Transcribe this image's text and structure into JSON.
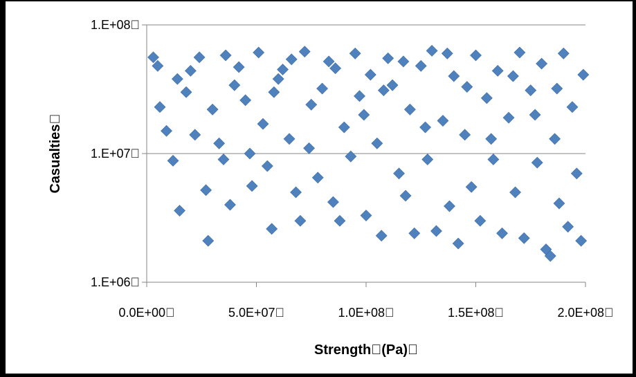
{
  "chart_data": {
    "type": "scatter",
    "title": "",
    "xlabel": "Strength\u0000(Pa)\u0000",
    "ylabel": "Casualties\u0000",
    "xlim": [
      0,
      200000000
    ],
    "ylim": [
      1000000,
      100000000
    ],
    "y_scale": "log",
    "grid": "horizontal major gridlines",
    "legend": "none",
    "marker": "diamond",
    "marker_color": "#4f81bd",
    "x_tick_labels": [
      "0.0E+00\u0000",
      "5.0E+07\u0000",
      "1.0E+08\u0000",
      "1.5E+08\u0000",
      "2.0E+08\u0000"
    ],
    "x_ticks": [
      0,
      50000000,
      100000000,
      150000000,
      200000000
    ],
    "y_tick_labels": [
      "1.E+06\u0000",
      "1.E+07\u0000",
      "1.E+08\u0000"
    ],
    "y_ticks": [
      1000000,
      10000000,
      100000000
    ],
    "series": [
      {
        "points": [
          [
            3000000,
            56000000
          ],
          [
            5000000,
            48000000
          ],
          [
            9000000,
            15000000
          ],
          [
            12000000,
            8800000
          ],
          [
            15000000,
            3600000
          ],
          [
            18000000,
            30000000
          ],
          [
            20000000,
            44000000
          ],
          [
            24000000,
            56000000
          ],
          [
            27000000,
            5200000
          ],
          [
            28000000,
            2100000
          ],
          [
            30000000,
            22000000
          ],
          [
            33000000,
            12000000
          ],
          [
            35000000,
            9000000
          ],
          [
            38000000,
            4000000
          ],
          [
            40000000,
            34000000
          ],
          [
            42000000,
            47000000
          ],
          [
            45000000,
            26000000
          ],
          [
            48000000,
            5600000
          ],
          [
            51000000,
            61000000
          ],
          [
            53000000,
            17000000
          ],
          [
            55000000,
            8000000
          ],
          [
            57000000,
            2600000
          ],
          [
            60000000,
            38000000
          ],
          [
            62000000,
            45000000
          ],
          [
            65000000,
            13000000
          ],
          [
            68000000,
            5000000
          ],
          [
            70000000,
            3000000
          ],
          [
            72000000,
            62000000
          ],
          [
            75000000,
            24000000
          ],
          [
            78000000,
            6500000
          ],
          [
            80000000,
            32000000
          ],
          [
            83000000,
            52000000
          ],
          [
            85000000,
            4200000
          ],
          [
            88000000,
            3000000
          ],
          [
            90000000,
            16000000
          ],
          [
            93000000,
            9500000
          ],
          [
            95000000,
            60000000
          ],
          [
            97000000,
            28000000
          ],
          [
            100000000,
            3300000
          ],
          [
            102000000,
            41000000
          ],
          [
            105000000,
            12000000
          ],
          [
            107000000,
            2300000
          ],
          [
            110000000,
            55000000
          ],
          [
            112000000,
            34000000
          ],
          [
            115000000,
            7000000
          ],
          [
            118000000,
            4700000
          ],
          [
            120000000,
            22000000
          ],
          [
            122000000,
            2400000
          ],
          [
            125000000,
            48000000
          ],
          [
            128000000,
            9000000
          ],
          [
            130000000,
            63000000
          ],
          [
            132000000,
            2500000
          ],
          [
            135000000,
            18000000
          ],
          [
            138000000,
            3900000
          ],
          [
            140000000,
            40000000
          ],
          [
            142000000,
            2000000
          ],
          [
            145000000,
            14000000
          ],
          [
            148000000,
            5500000
          ],
          [
            150000000,
            58000000
          ],
          [
            152000000,
            3000000
          ],
          [
            155000000,
            27000000
          ],
          [
            158000000,
            9000000
          ],
          [
            160000000,
            44000000
          ],
          [
            162000000,
            2400000
          ],
          [
            165000000,
            19000000
          ],
          [
            168000000,
            5000000
          ],
          [
            170000000,
            61000000
          ],
          [
            172000000,
            2200000
          ],
          [
            175000000,
            31000000
          ],
          [
            178000000,
            8500000
          ],
          [
            180000000,
            50000000
          ],
          [
            182000000,
            1800000
          ],
          [
            184000000,
            1600000
          ],
          [
            186000000,
            13000000
          ],
          [
            188000000,
            4100000
          ],
          [
            190000000,
            60000000
          ],
          [
            192000000,
            2700000
          ],
          [
            194000000,
            23000000
          ],
          [
            196000000,
            7000000
          ],
          [
            198000000,
            2100000
          ],
          [
            199000000,
            41000000
          ],
          [
            6000000,
            23000000
          ],
          [
            14000000,
            38000000
          ],
          [
            22000000,
            14000000
          ],
          [
            36000000,
            58000000
          ],
          [
            47000000,
            10000000
          ],
          [
            58000000,
            30000000
          ],
          [
            66000000,
            54000000
          ],
          [
            74000000,
            11000000
          ],
          [
            86000000,
            46000000
          ],
          [
            99000000,
            20000000
          ],
          [
            108000000,
            31000000
          ],
          [
            117000000,
            52000000
          ],
          [
            127000000,
            16000000
          ],
          [
            137000000,
            60000000
          ],
          [
            146000000,
            33000000
          ],
          [
            157000000,
            13000000
          ],
          [
            167000000,
            40000000
          ],
          [
            177000000,
            20000000
          ],
          [
            187000000,
            32000000
          ]
        ]
      }
    ]
  }
}
